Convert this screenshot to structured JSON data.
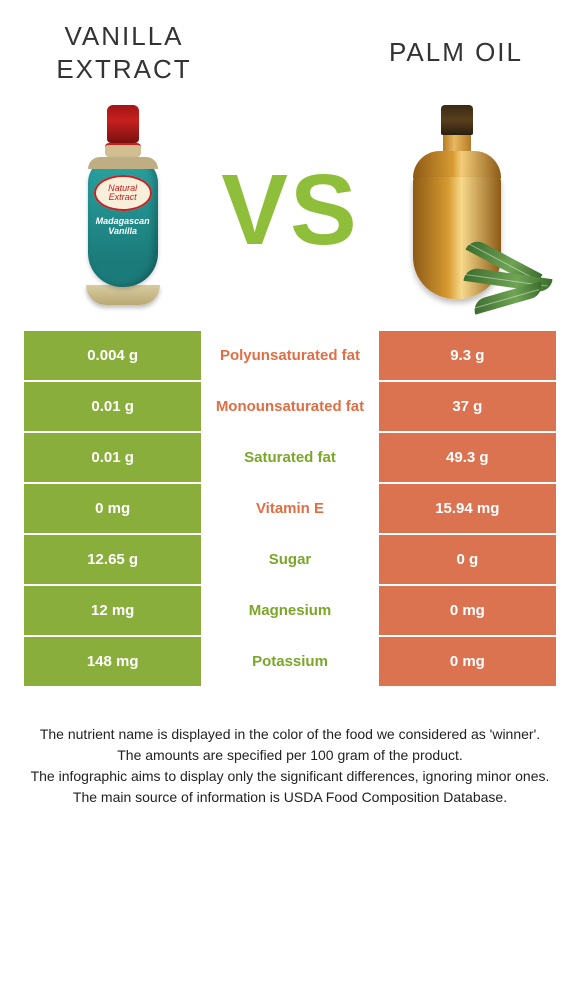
{
  "titles": {
    "left": "Vanilla extract",
    "right": "Palm oil"
  },
  "vs_text": "VS",
  "left_bottle": {
    "label1a": "Natural",
    "label1b": "Extract",
    "label2a": "Madagascan",
    "label2b": "Vanilla"
  },
  "colors": {
    "green": "#8aae3c",
    "orange": "#db7351",
    "mid_green": "#7ba729",
    "mid_orange": "#e06e45"
  },
  "rows": [
    {
      "nutrient": "Polyunsaturated fat",
      "left": "0.004 g",
      "right": "9.3 g",
      "winner": "right"
    },
    {
      "nutrient": "Monounsaturated fat",
      "left": "0.01 g",
      "right": "37 g",
      "winner": "right"
    },
    {
      "nutrient": "Saturated fat",
      "left": "0.01 g",
      "right": "49.3 g",
      "winner": "left"
    },
    {
      "nutrient": "Vitamin E",
      "left": "0 mg",
      "right": "15.94 mg",
      "winner": "right"
    },
    {
      "nutrient": "Sugar",
      "left": "12.65 g",
      "right": "0 g",
      "winner": "left"
    },
    {
      "nutrient": "Magnesium",
      "left": "12 mg",
      "right": "0 mg",
      "winner": "left"
    },
    {
      "nutrient": "Potassium",
      "left": "148 mg",
      "right": "0 mg",
      "winner": "left"
    }
  ],
  "footer": [
    "The nutrient name is displayed in the color of the food we considered as 'winner'.",
    "The amounts are specified per 100 gram of the product.",
    "The infographic aims to display only the significant differences, ignoring minor ones.",
    "The main source of information is USDA Food Composition Database."
  ]
}
